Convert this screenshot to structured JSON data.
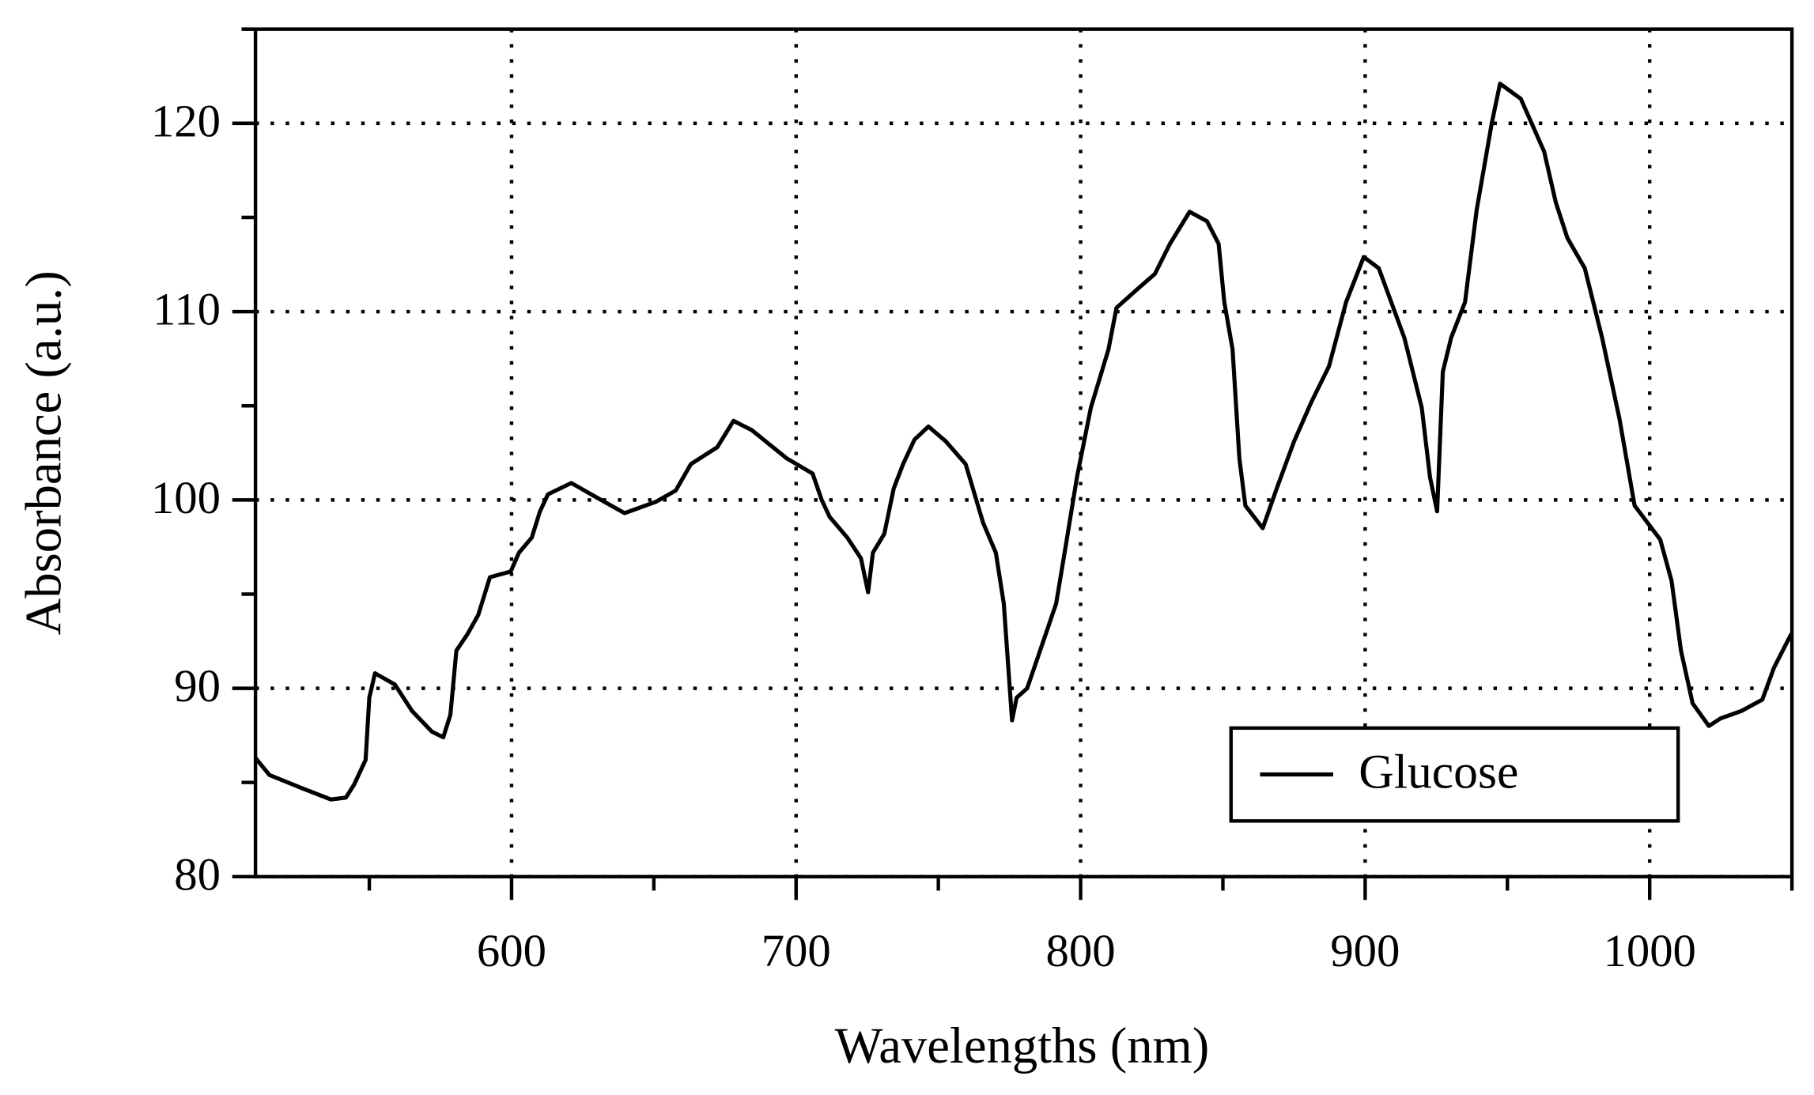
{
  "chart_data": {
    "type": "line",
    "x_label": "Wavelengths (nm)",
    "y_label": "Absorbance (a.u.)",
    "xlim": [
      510,
      1050
    ],
    "ylim": [
      80,
      125
    ],
    "xticks": [
      600,
      700,
      800,
      900,
      1000
    ],
    "yticks": [
      80,
      90,
      100,
      110,
      120
    ],
    "xticks_minor": [
      550,
      650,
      750,
      850,
      950,
      1050
    ],
    "yticks_minor": [
      85,
      95,
      105,
      115,
      125
    ],
    "grid": true,
    "legend": "lower right",
    "series": [
      {
        "name": "Glucose",
        "color": "#000000",
        "x": [
          510,
          514.9,
          526.3,
          536.5,
          541.8,
          544.7,
          548.7,
          550,
          552,
          559,
          565,
          572,
          576,
          578.5,
          580.6,
          584.6,
          588.3,
          592.4,
          599.7,
          602.6,
          607.1,
          610,
          612.8,
          621,
          630.3,
          639.7,
          650.7,
          657.7,
          663,
          672.3,
          678,
          684.5,
          696.8,
          705.8,
          709,
          711.8,
          718,
          722.8,
          725.3,
          727,
          731,
          734.3,
          737.6,
          741.6,
          746.5,
          752.7,
          759.6,
          765.7,
          770.2,
          773,
          775.9,
          777.5,
          781.2,
          784.4,
          791.4,
          794.7,
          798.7,
          803.6,
          809.8,
          812.6,
          820,
          826.1,
          831.4,
          838.3,
          844.4,
          848.5,
          850.5,
          853.4,
          855.8,
          857.9,
          864,
          868.9,
          875,
          881.1,
          887.3,
          893.3,
          899.5,
          904.8,
          913.8,
          919.9,
          922.8,
          925.3,
          927.3,
          930.2,
          935.1,
          939.2,
          944.5,
          947.4,
          954.7,
          962.9,
          967,
          971.1,
          977.2,
          983.3,
          989.4,
          994.7,
          1003.7,
          1007.7,
          1011,
          1015.1,
          1020.8,
          1024.9,
          1032.3,
          1039.6,
          1043.7,
          1049.8
        ],
        "values": [
          86.3,
          85.4,
          84.7,
          84.1,
          84.2,
          84.9,
          86.2,
          89.5,
          90.8,
          90.2,
          88.8,
          87.7,
          87.4,
          88.6,
          92,
          92.9,
          93.9,
          95.9,
          96.2,
          97.2,
          98,
          99.4,
          100.3,
          100.9,
          100.1,
          99.3,
          99.9,
          100.5,
          101.9,
          102.8,
          104.2,
          103.7,
          102.2,
          101.4,
          100,
          99.1,
          98,
          96.9,
          95.1,
          97.2,
          98.2,
          100.6,
          101.9,
          103.2,
          103.9,
          103.1,
          101.9,
          98.8,
          97.2,
          94.5,
          88.3,
          89.5,
          90,
          91.4,
          94.5,
          97.5,
          101.2,
          104.9,
          108,
          110.2,
          111.2,
          112,
          113.6,
          115.3,
          114.8,
          113.6,
          110.5,
          108,
          102.2,
          99.7,
          98.5,
          100.6,
          103.1,
          105.2,
          107.1,
          110.5,
          112.9,
          112.3,
          108.6,
          104.9,
          101.2,
          99.4,
          106.8,
          108.6,
          110.5,
          115.4,
          120,
          122.1,
          121.3,
          118.5,
          115.8,
          113.9,
          112.3,
          108.6,
          104.3,
          99.7,
          97.9,
          95.7,
          92,
          89.2,
          88,
          88.4,
          88.8,
          89.4,
          91.1,
          92.9
        ]
      }
    ]
  }
}
